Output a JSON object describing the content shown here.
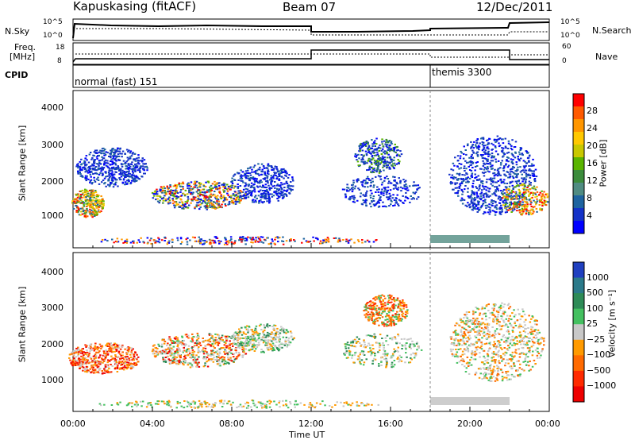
{
  "header": {
    "station": "Kapuskasing (fitACF)",
    "beam": "Beam 07",
    "date": "12/Dec/2011"
  },
  "top_panels": {
    "nsky_label": "N.Sky",
    "nsky_ticks": [
      "10^5",
      "10^0"
    ],
    "nsearch_label": "N.Search",
    "nsearch_ticks": [
      "10^5",
      "10^0"
    ],
    "freq_label": "Freq.",
    "freq_unit": "[MHz]",
    "freq_ticks": [
      "18",
      "8"
    ],
    "nave_label": "Nave",
    "nave_ticks": [
      "60",
      "0"
    ],
    "cpid_label": "CPID",
    "modes": [
      {
        "name": "normal (fast) 151",
        "start_hour": 0,
        "end_hour": 18
      },
      {
        "name": "themis 3300",
        "start_hour": 18,
        "end_hour": 24
      }
    ]
  },
  "chart_data": [
    {
      "type": "heatmap",
      "name": "power-panel",
      "xlabel": "",
      "ylabel": "Slant Range [km]",
      "ylim": [
        200,
        4600
      ],
      "xlim_hours": [
        0,
        24
      ],
      "yticks": [
        "1000",
        "2000",
        "3000",
        "4000"
      ],
      "colorbar": {
        "label": "Power [dB]",
        "ticks": [
          "28",
          "24",
          "20",
          "16",
          "12",
          "8",
          "4"
        ],
        "colors": [
          "#ff0000",
          "#ff5a00",
          "#ff9600",
          "#ffc800",
          "#c8c800",
          "#5ab400",
          "#3c8c3c",
          "#508c82",
          "#1e64a0",
          "#1432c8",
          "#0000ff"
        ]
      }
    },
    {
      "type": "heatmap",
      "name": "velocity-panel",
      "xlabel": "Time UT",
      "ylabel": "Slant Range [km]",
      "ylim": [
        200,
        4600
      ],
      "xlim_hours": [
        0,
        24
      ],
      "yticks": [
        "1000",
        "2000",
        "3000",
        "4000"
      ],
      "xticks": [
        "00:00",
        "04:00",
        "08:00",
        "12:00",
        "16:00",
        "20:00",
        "00:00"
      ],
      "colorbar": {
        "label": "Velocity [m s⁻¹]",
        "ticks": [
          "1000",
          "500",
          "100",
          "25",
          "−25",
          "−100",
          "−500",
          "−1000"
        ],
        "colors": [
          "#2040c0",
          "#2b7a8a",
          "#2e8b57",
          "#44c060",
          "#c8c8c8",
          "#ff9a00",
          "#ff6a00",
          "#ff2a00",
          "#ee0000"
        ]
      }
    }
  ]
}
